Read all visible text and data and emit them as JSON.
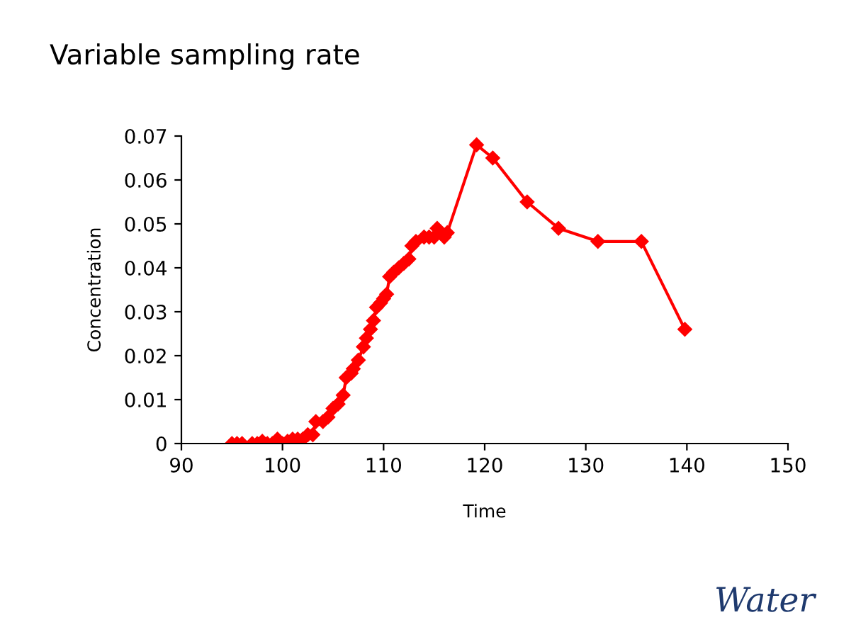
{
  "chart_data": {
    "type": "line",
    "title": "Variable sampling rate",
    "xlabel": "Time",
    "ylabel": "Concentration",
    "annotations": [
      "Water"
    ],
    "series": [
      {
        "color": "#ff0000",
        "x": [
          95,
          95.5,
          96,
          97,
          97.5,
          98,
          98.5,
          99,
          99.5,
          100,
          100.5,
          101,
          101.5,
          102,
          102.5,
          103,
          103.3,
          104,
          104.5,
          105,
          105.5,
          106,
          106.3,
          106.8,
          107,
          107.5,
          108,
          108.3,
          108.7,
          109,
          109.3,
          109.7,
          110,
          110.3,
          110.6,
          111,
          111.5,
          112,
          112.5,
          112.8,
          113.2,
          114,
          114.5,
          115,
          115.3,
          115.6,
          116,
          116.3,
          119.2,
          120.8,
          124.2,
          127.3,
          131.2,
          135.5,
          139.8
        ],
        "values": [
          0,
          0,
          0,
          0,
          0,
          0.0005,
          0,
          0,
          0.001,
          0,
          0.0005,
          0.001,
          0.001,
          0.001,
          0.002,
          0.002,
          0.005,
          0.005,
          0.006,
          0.008,
          0.009,
          0.011,
          0.015,
          0.016,
          0.017,
          0.019,
          0.022,
          0.024,
          0.026,
          0.028,
          0.031,
          0.032,
          0.033,
          0.034,
          0.038,
          0.039,
          0.04,
          0.041,
          0.042,
          0.045,
          0.046,
          0.047,
          0.047,
          0.047,
          0.049,
          0.048,
          0.047,
          0.048,
          0.068,
          0.065,
          0.055,
          0.049,
          0.046,
          0.046,
          0.026
        ]
      }
    ],
    "xlim": [
      90,
      150
    ],
    "xticks": [
      90,
      100,
      110,
      120,
      130,
      140,
      150
    ],
    "ylim": [
      0,
      0.07
    ],
    "yticks": [
      0,
      0.01,
      0.02,
      0.03,
      0.04,
      0.05,
      0.06,
      0.07
    ],
    "grid": false,
    "legend": false,
    "marker": "diamond",
    "line_style": "solid"
  }
}
